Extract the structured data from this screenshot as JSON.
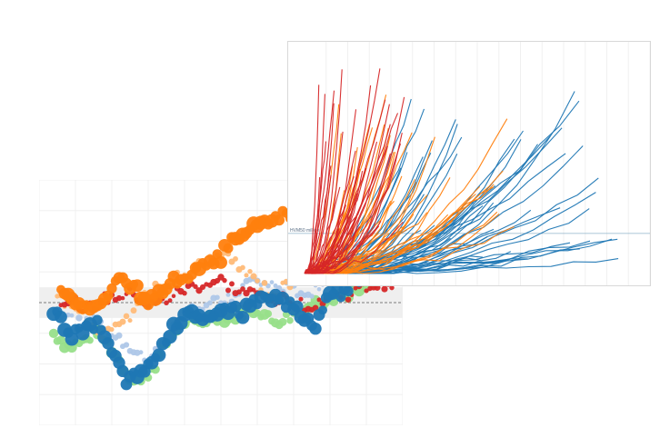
{
  "colors": {
    "red": "#d62728",
    "orange": "#ff7f0e",
    "blue": "#1f77b4",
    "light_blue": "#aec7e8",
    "light_orange": "#ffbb78",
    "light_green": "#98df8a",
    "band": "#efefef",
    "gridline": "#f0f0f0",
    "ref_line": "#8fb3c9"
  },
  "chart_data": [
    {
      "type": "scatter",
      "title": "",
      "xlabel": "",
      "ylabel": "",
      "xlim": [
        0,
        100
      ],
      "ylim": [
        -80,
        80
      ],
      "grid": true,
      "reference_line": {
        "y": 0,
        "style": "dashed"
      },
      "band": {
        "y0": -10,
        "y1": 10
      },
      "series": [
        {
          "color": "#98df8a",
          "size": "medium",
          "x": [
            4,
            8,
            12,
            16,
            20,
            24,
            28,
            32,
            36,
            40,
            44,
            48,
            52,
            56,
            60,
            64,
            68,
            72,
            76,
            80,
            84,
            88,
            92,
            96
          ],
          "y": [
            -20,
            -28,
            -26,
            -18,
            -30,
            -45,
            -52,
            -40,
            -22,
            -12,
            -14,
            -8,
            -10,
            -6,
            -4,
            -12,
            -10,
            -6,
            0,
            4,
            6,
            8,
            12,
            16
          ]
        },
        {
          "color": "#aec7e8",
          "size": "small",
          "x": [
            6,
            10,
            14,
            18,
            22,
            26,
            30,
            34,
            38,
            42,
            46,
            50,
            54,
            58,
            62,
            66,
            70,
            74,
            78,
            82,
            86,
            90,
            94,
            98
          ],
          "y": [
            -6,
            -14,
            -10,
            -16,
            -22,
            -34,
            -38,
            -24,
            -14,
            -4,
            -2,
            0,
            6,
            14,
            12,
            10,
            8,
            6,
            14,
            20,
            28,
            34,
            30,
            36
          ]
        },
        {
          "color": "#ffbb78",
          "size": "small",
          "x": [
            5,
            9,
            13,
            17,
            21,
            25,
            29,
            33,
            37,
            41,
            45,
            49,
            53,
            57,
            61,
            65,
            69,
            73,
            77,
            81,
            85,
            89,
            93,
            97
          ],
          "y": [
            4,
            -2,
            -10,
            -24,
            -18,
            -8,
            4,
            10,
            16,
            20,
            26,
            30,
            28,
            20,
            12,
            6,
            14,
            22,
            30,
            34,
            40,
            44,
            38,
            42
          ]
        },
        {
          "color": "#d62728",
          "size": "small",
          "x": [
            6,
            10,
            14,
            18,
            22,
            26,
            30,
            34,
            38,
            42,
            46,
            50,
            54,
            58,
            62,
            66,
            70,
            74,
            78,
            82,
            86,
            90,
            94,
            98
          ],
          "y": [
            2,
            0,
            -4,
            2,
            4,
            6,
            -2,
            0,
            6,
            10,
            12,
            14,
            8,
            6,
            4,
            2,
            0,
            -2,
            2,
            4,
            6,
            10,
            12,
            14
          ]
        },
        {
          "color": "#ff7f0e",
          "size": "large",
          "x": [
            6,
            10,
            14,
            18,
            22,
            26,
            30,
            34,
            38,
            42,
            46,
            50,
            54,
            58,
            62,
            66,
            70,
            74,
            78,
            82,
            86,
            90,
            94,
            98
          ],
          "y": [
            8,
            0,
            -6,
            4,
            14,
            10,
            2,
            10,
            16,
            20,
            24,
            30,
            44,
            48,
            50,
            56,
            58,
            54,
            52,
            50,
            48,
            42,
            44,
            46
          ]
        },
        {
          "color": "#1f77b4",
          "size": "large",
          "x": [
            4,
            8,
            12,
            16,
            20,
            24,
            28,
            32,
            36,
            40,
            44,
            48,
            52,
            56,
            60,
            64,
            68,
            72,
            76,
            80,
            84,
            88,
            92,
            96
          ],
          "y": [
            -4,
            -22,
            -20,
            -12,
            -30,
            -50,
            -46,
            -34,
            -20,
            -10,
            -8,
            -6,
            -4,
            -6,
            0,
            4,
            -2,
            -6,
            -14,
            4,
            8,
            14,
            20,
            22
          ]
        }
      ]
    },
    {
      "type": "line",
      "title": "",
      "xlabel": "",
      "ylabel": "",
      "xlim": [
        0,
        100
      ],
      "ylim": [
        0,
        100
      ],
      "grid": true,
      "reference_line": {
        "y": 18,
        "label": "HVM50 million"
      },
      "series": [
        {
          "color": "#d62728",
          "count": 40,
          "x_end_range": [
            3,
            30
          ],
          "y_end_range": [
            20,
            95
          ]
        },
        {
          "color": "#ff7f0e",
          "count": 45,
          "x_end_range": [
            10,
            62
          ],
          "y_end_range": [
            18,
            82
          ]
        },
        {
          "color": "#1f77b4",
          "count": 50,
          "x_end_range": [
            25,
            95
          ],
          "y_end_range": [
            5,
            85
          ]
        }
      ]
    }
  ]
}
